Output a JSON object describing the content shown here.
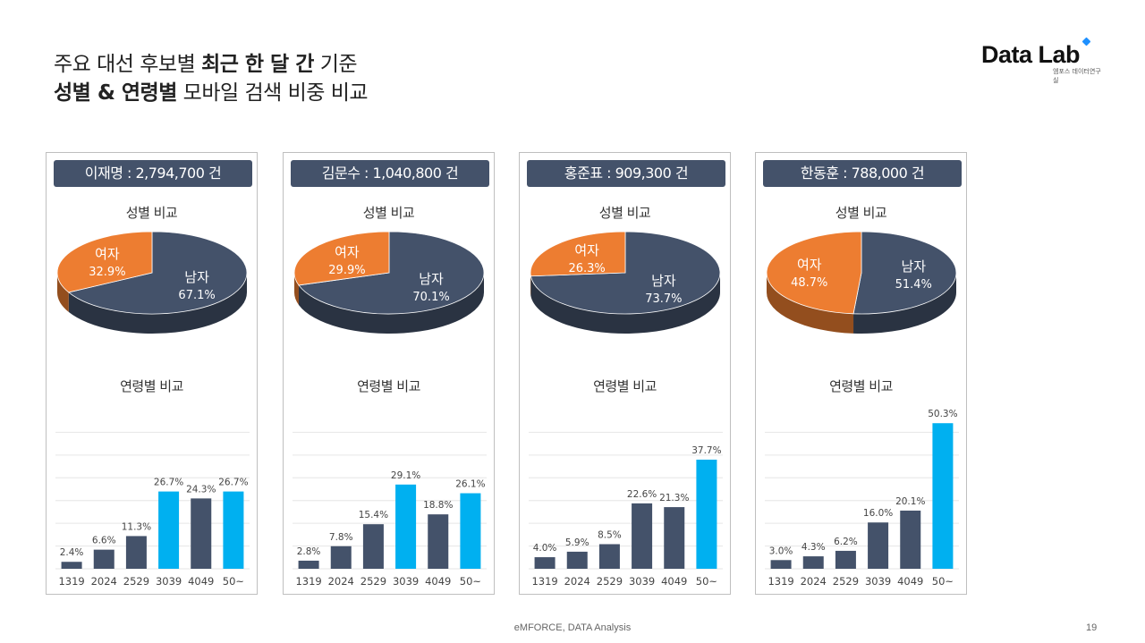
{
  "header": {
    "title_line1_pre": "주요 대선 후보별 ",
    "title_line1_bold": "최근 한 달 간",
    "title_line1_post": " 기준",
    "title_line2_bold": "성별 & 연령별",
    "title_line2_post": " 모바일 검색 비중 비교"
  },
  "logo": {
    "text": "Data Lab",
    "subtitle": "엠포스 데이터연구실",
    "accent_color": "#1e90ff"
  },
  "labels": {
    "gender_title": "성별 비교",
    "age_title": "연령별 비교",
    "male": "남자",
    "female": "여자"
  },
  "colors": {
    "male": "#44526a",
    "female": "#ed7d31",
    "bar_default": "#44526a",
    "bar_highlight": "#00b0f0",
    "pill": "#44526a"
  },
  "chart_data": [
    {
      "type": "pie",
      "title": "이재명 : 2,794,700 건",
      "categories": [
        "남자",
        "여자"
      ],
      "values": [
        67.1,
        32.9
      ],
      "value_labels": [
        "67.1%",
        "32.9%"
      ]
    },
    {
      "type": "bar",
      "title": "이재명 : 2,794,700 건",
      "categories": [
        "1319",
        "2024",
        "2529",
        "3039",
        "4049",
        "50~"
      ],
      "values": [
        2.4,
        6.6,
        11.3,
        26.7,
        24.3,
        26.7
      ],
      "value_labels": [
        "2.4%",
        "6.6%",
        "11.3%",
        "26.7%",
        "24.3%",
        "26.7%"
      ],
      "highlight": [
        false,
        false,
        false,
        true,
        false,
        true
      ]
    },
    {
      "type": "pie",
      "title": "김문수 : 1,040,800 건",
      "categories": [
        "남자",
        "여자"
      ],
      "values": [
        70.1,
        29.9
      ],
      "value_labels": [
        "70.1%",
        "29.9%"
      ]
    },
    {
      "type": "bar",
      "title": "김문수 : 1,040,800 건",
      "categories": [
        "1319",
        "2024",
        "2529",
        "3039",
        "4049",
        "50~"
      ],
      "values": [
        2.8,
        7.8,
        15.4,
        29.1,
        18.8,
        26.1
      ],
      "value_labels": [
        "2.8%",
        "7.8%",
        "15.4%",
        "29.1%",
        "18.8%",
        "26.1%"
      ],
      "highlight": [
        false,
        false,
        false,
        true,
        false,
        true
      ]
    },
    {
      "type": "pie",
      "title": "홍준표 : 909,300 건",
      "categories": [
        "남자",
        "여자"
      ],
      "values": [
        73.7,
        26.3
      ],
      "value_labels": [
        "73.7%",
        "26.3%"
      ]
    },
    {
      "type": "bar",
      "title": "홍준표 : 909,300 건",
      "categories": [
        "1319",
        "2024",
        "2529",
        "3039",
        "4049",
        "50~"
      ],
      "values": [
        4.0,
        5.9,
        8.5,
        22.6,
        21.3,
        37.7
      ],
      "value_labels": [
        "4.0%",
        "5.9%",
        "8.5%",
        "22.6%",
        "21.3%",
        "37.7%"
      ],
      "highlight": [
        false,
        false,
        false,
        false,
        false,
        true
      ]
    },
    {
      "type": "pie",
      "title": "한동훈 : 788,000 건",
      "categories": [
        "남자",
        "여자"
      ],
      "values": [
        51.4,
        48.7
      ],
      "value_labels": [
        "51.4%",
        "48.7%"
      ]
    },
    {
      "type": "bar",
      "title": "한동훈 : 788,000 건",
      "categories": [
        "1319",
        "2024",
        "2529",
        "3039",
        "4049",
        "50~"
      ],
      "values": [
        3.0,
        4.3,
        6.2,
        16.0,
        20.1,
        50.3
      ],
      "value_labels": [
        "3.0%",
        "4.3%",
        "6.2%",
        "16.0%",
        "20.1%",
        "50.3%"
      ],
      "highlight": [
        false,
        false,
        false,
        false,
        false,
        true
      ]
    }
  ],
  "footer": {
    "text": "eMFORCE, DATA Analysis",
    "page": "19"
  }
}
